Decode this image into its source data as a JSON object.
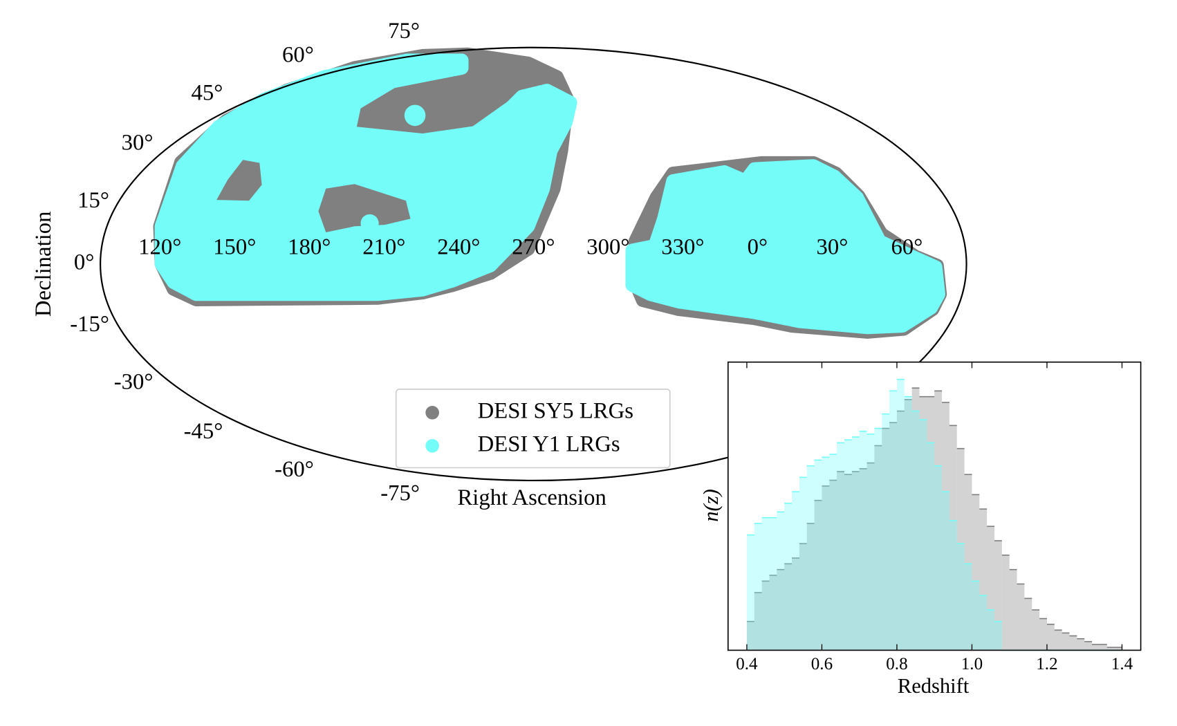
{
  "chart_data": [
    {
      "type": "map",
      "xlabel": "Right Ascension",
      "ylabel": "Declination",
      "xlim": [
        90,
        450
      ],
      "xticks": [
        {
          "value": 120,
          "label": "120°"
        },
        {
          "value": 150,
          "label": "150°"
        },
        {
          "value": 180,
          "label": "180°"
        },
        {
          "value": 210,
          "label": "210°"
        },
        {
          "value": 240,
          "label": "240°"
        },
        {
          "value": 270,
          "label": "270°"
        },
        {
          "value": 300,
          "label": "300°"
        },
        {
          "value": 330,
          "label": "330°"
        },
        {
          "value": 0,
          "label": "0°"
        },
        {
          "value": 30,
          "label": "30°"
        },
        {
          "value": 60,
          "label": "60°"
        }
      ],
      "yticks": [
        {
          "value": 75,
          "label": "75°"
        },
        {
          "value": 60,
          "label": "60°"
        },
        {
          "value": 45,
          "label": "45°"
        },
        {
          "value": 30,
          "label": "30°"
        },
        {
          "value": 15,
          "label": "15°"
        },
        {
          "value": 0,
          "label": "0°"
        },
        {
          "value": -15,
          "label": "-15°"
        },
        {
          "value": -30,
          "label": "-30°"
        },
        {
          "value": -45,
          "label": "-45°"
        },
        {
          "value": -60,
          "label": "-60°"
        },
        {
          "value": -75,
          "label": "-75°"
        }
      ],
      "series": [
        {
          "name": "DESI SY5 LRGs",
          "color": "#808080"
        },
        {
          "name": "DESI Y1 LRGs",
          "color": "#74fcf9"
        }
      ]
    },
    {
      "type": "histogram",
      "xlabel": "Redshift",
      "ylabel": "n(z)",
      "xlim": [
        0.35,
        1.45
      ],
      "ylim": [
        0,
        100
      ],
      "xticks": [
        0.4,
        0.6,
        0.8,
        {
          "value": 1,
          "label": "1.0"
        },
        1.2,
        1.4
      ],
      "bins": [
        0.4,
        0.42,
        0.44,
        0.46,
        0.48,
        0.5,
        0.52,
        0.54,
        0.56,
        0.58,
        0.6,
        0.62,
        0.64,
        0.66,
        0.68,
        0.7,
        0.72,
        0.74,
        0.76,
        0.78,
        0.8,
        0.82,
        0.84,
        0.86,
        0.88,
        0.9,
        0.92,
        0.94,
        0.96,
        0.98,
        1.0,
        1.02,
        1.04,
        1.06,
        1.08,
        1.1,
        1.12,
        1.14,
        1.16,
        1.18,
        1.2,
        1.22,
        1.24,
        1.26,
        1.28,
        1.3,
        1.32,
        1.34,
        1.36,
        1.38,
        1.4
      ],
      "series": [
        {
          "color": "#808080",
          "values": [
            10,
            20,
            24,
            26,
            28,
            30,
            32,
            37,
            44,
            52,
            57,
            59,
            62,
            61,
            62,
            63,
            65,
            71,
            77,
            79,
            83,
            87,
            91,
            88,
            88,
            90,
            86,
            78,
            70,
            61,
            54,
            49,
            43,
            38,
            33,
            28,
            23,
            18,
            14,
            11,
            9,
            7,
            6,
            5,
            4,
            3,
            2,
            2,
            1,
            1
          ]
        },
        {
          "color": "#74fcf9",
          "values": [
            40,
            44,
            46,
            46,
            48,
            51,
            55,
            60,
            64,
            66,
            67,
            68,
            72,
            73,
            74,
            76,
            75,
            77,
            82,
            90,
            94,
            88,
            83,
            80,
            72,
            64,
            55,
            45,
            37,
            30,
            24,
            19,
            14,
            10,
            0,
            0,
            0,
            0,
            0,
            0,
            0,
            0,
            0,
            0,
            0,
            0,
            0,
            0,
            0,
            0
          ]
        }
      ]
    }
  ]
}
